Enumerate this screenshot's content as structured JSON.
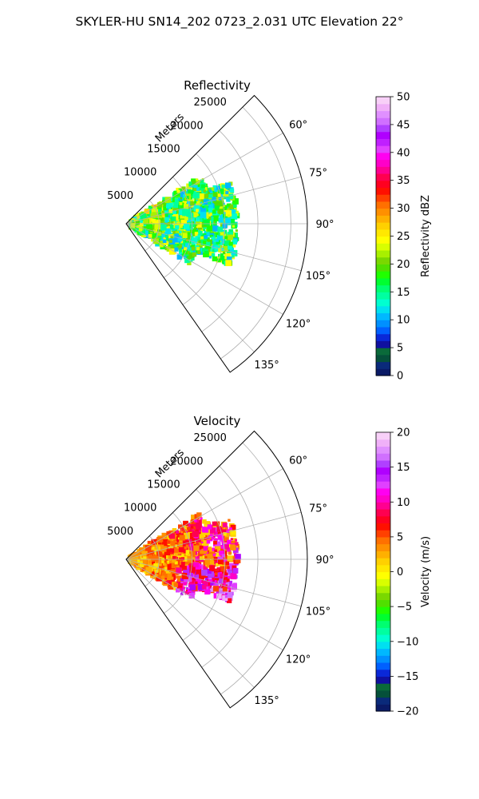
{
  "title": "SKYLER-HU  SN14_202  0723_2.031 UTC Elevation 22°",
  "chart_data": [
    {
      "type": "heatmap",
      "title": "Reflectivity",
      "r_label": "Meters",
      "r_ticks": [
        5000,
        10000,
        15000,
        20000,
        25000
      ],
      "r_tick_labels": [
        "5000",
        "10000",
        "15000",
        "20000",
        "25000"
      ],
      "r_max": 27500,
      "theta_range": [
        45,
        145
      ],
      "theta_ticks": [
        60,
        75,
        90,
        105,
        120,
        135
      ],
      "theta_tick_labels": [
        "60°",
        "75°",
        "90°",
        "105°",
        "120°",
        "135°"
      ],
      "colorbar": {
        "label": "Reflectivity dBZ",
        "range": [
          0,
          50
        ],
        "ticks": [
          0,
          5,
          10,
          15,
          20,
          25,
          30,
          35,
          40,
          45,
          50
        ],
        "tick_labels": [
          "0",
          "5",
          "10",
          "15",
          "20",
          "25",
          "30",
          "35",
          "40",
          "45",
          "50"
        ],
        "colors": [
          "#0a1a66",
          "#0a2a7a",
          "#05503a",
          "#0a6a3a",
          "#1010a0",
          "#0a28d8",
          "#0060ff",
          "#0090ff",
          "#00b8ff",
          "#00e0f0",
          "#00ffd0",
          "#00ffa0",
          "#00ff70",
          "#00ff30",
          "#20ff00",
          "#50e000",
          "#7ad800",
          "#a8f000",
          "#d8ff00",
          "#ffff00",
          "#ffe800",
          "#ffd000",
          "#ffb000",
          "#ff9000",
          "#ff7000",
          "#ff4000",
          "#ff1000",
          "#ff0020",
          "#ff0050",
          "#ff0090",
          "#ff00c8",
          "#ff00f0",
          "#e040ff",
          "#c020ff",
          "#b000ff",
          "#b040ff",
          "#d070ff",
          "#e090ff",
          "#f0b0f8",
          "#f8d0f8"
        ]
      },
      "storm_value_range": [
        10,
        25
      ]
    },
    {
      "type": "heatmap",
      "title": "Velocity",
      "r_label": "Meters",
      "r_ticks": [
        5000,
        10000,
        15000,
        20000,
        25000
      ],
      "r_tick_labels": [
        "5000",
        "10000",
        "15000",
        "20000",
        "25000"
      ],
      "r_max": 27500,
      "theta_range": [
        45,
        145
      ],
      "theta_ticks": [
        60,
        75,
        90,
        105,
        120,
        135
      ],
      "theta_tick_labels": [
        "60°",
        "75°",
        "90°",
        "105°",
        "120°",
        "135°"
      ],
      "colorbar": {
        "label": "Velocity (m/s)",
        "range": [
          -20,
          20
        ],
        "ticks": [
          -20,
          -15,
          -10,
          -5,
          0,
          5,
          10,
          15,
          20
        ],
        "tick_labels": [
          "−20",
          "−15",
          "−10",
          "−5",
          "0",
          "5",
          "10",
          "15",
          "20"
        ],
        "colors": [
          "#0a1a66",
          "#0a2a7a",
          "#05503a",
          "#0a6a3a",
          "#1010a0",
          "#0a28d8",
          "#0060ff",
          "#0090ff",
          "#00b8ff",
          "#00e0f0",
          "#00ffd0",
          "#00ffa0",
          "#00ff70",
          "#00ff30",
          "#20ff00",
          "#50e000",
          "#7ad800",
          "#a8f000",
          "#d8ff00",
          "#ffff00",
          "#ffe800",
          "#ffd000",
          "#ffb000",
          "#ff9000",
          "#ff7000",
          "#ff4000",
          "#ff1000",
          "#ff0020",
          "#ff0050",
          "#ff0090",
          "#ff00c8",
          "#ff00f0",
          "#e040ff",
          "#c020ff",
          "#b000ff",
          "#b040ff",
          "#d070ff",
          "#e090ff",
          "#f0b0f8",
          "#f8d0f8"
        ]
      },
      "storm_value_range": [
        0,
        15
      ]
    }
  ]
}
